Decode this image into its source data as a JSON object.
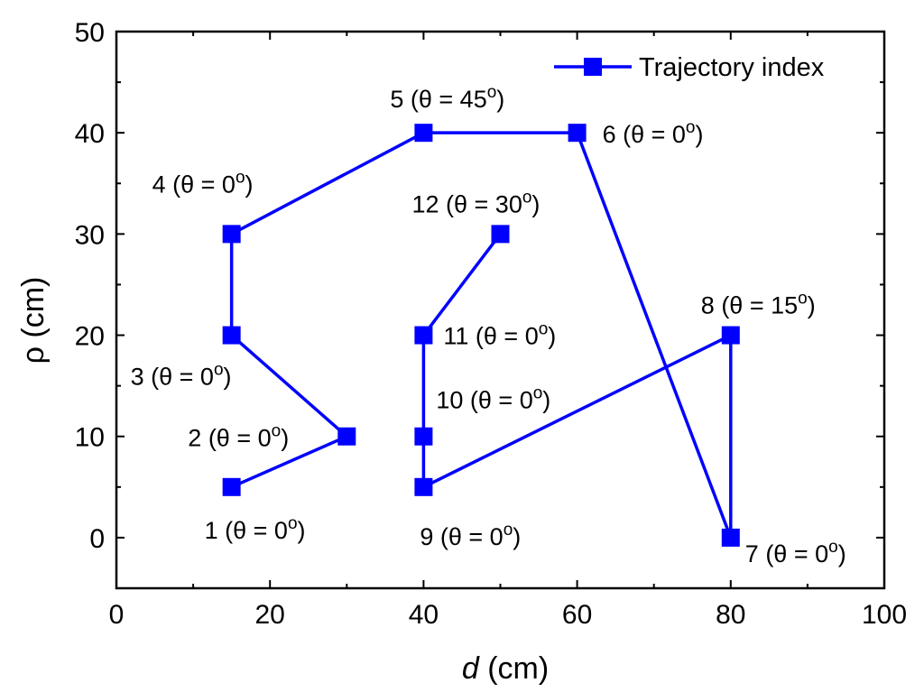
{
  "chart_data": {
    "type": "line",
    "xlabel_var": "d",
    "xlabel_unit": " (cm)",
    "ylabel": "ρ (cm)",
    "xlim": [
      0,
      100
    ],
    "ylim": [
      -5,
      50
    ],
    "xticks": [
      0,
      20,
      40,
      60,
      80,
      100
    ],
    "yticks": [
      0,
      10,
      20,
      30,
      40,
      50
    ],
    "grid": false,
    "legend_position": "top-right",
    "series": [
      {
        "name": "Trajectory index",
        "color": "#0000ff",
        "marker": "square",
        "points": [
          {
            "x": 15,
            "y": 5,
            "index": "1",
            "theta": "0"
          },
          {
            "x": 30,
            "y": 10,
            "index": "2",
            "theta": "0"
          },
          {
            "x": 15,
            "y": 20,
            "index": "3",
            "theta": "0"
          },
          {
            "x": 15,
            "y": 30,
            "index": "4",
            "theta": "0"
          },
          {
            "x": 40,
            "y": 40,
            "index": "5",
            "theta": "45"
          },
          {
            "x": 60,
            "y": 40,
            "index": "6",
            "theta": "0"
          },
          {
            "x": 80,
            "y": 0,
            "index": "7",
            "theta": "0"
          },
          {
            "x": 80,
            "y": 20,
            "index": "8",
            "theta": "15"
          },
          {
            "x": 40,
            "y": 5,
            "index": "9",
            "theta": "0"
          },
          {
            "x": 40,
            "y": 10,
            "index": "10",
            "theta": "0"
          },
          {
            "x": 40,
            "y": 20,
            "index": "11",
            "theta": "0"
          },
          {
            "x": 50,
            "y": 30,
            "index": "12",
            "theta": "30"
          }
        ]
      }
    ]
  }
}
